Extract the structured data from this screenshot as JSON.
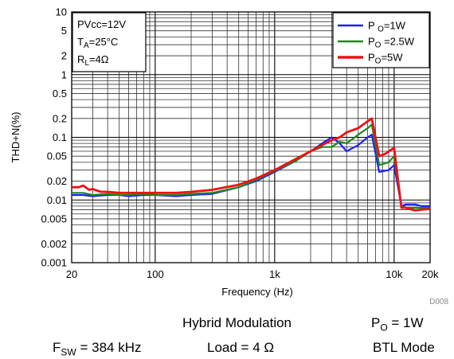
{
  "chart_data": {
    "type": "line",
    "xlabel": "Frequency (Hz)",
    "ylabel": "THD+N(%)",
    "x_scale": "log",
    "y_scale": "log",
    "xlim": [
      20,
      20000
    ],
    "ylim": [
      0.001,
      10
    ],
    "grid": true,
    "x_ticks": [
      {
        "value": 20,
        "label": "20"
      },
      {
        "value": 100,
        "label": "100"
      },
      {
        "value": 1000,
        "label": "1k"
      },
      {
        "value": 10000,
        "label": "10k"
      },
      {
        "value": 20000,
        "label": "20k"
      }
    ],
    "y_ticks": [
      {
        "value": 10,
        "label": "10"
      },
      {
        "value": 5,
        "label": "5"
      },
      {
        "value": 2,
        "label": "2"
      },
      {
        "value": 1,
        "label": "1"
      },
      {
        "value": 0.5,
        "label": "0.5"
      },
      {
        "value": 0.2,
        "label": "0.2"
      },
      {
        "value": 0.1,
        "label": "0.1"
      },
      {
        "value": 0.05,
        "label": "0.05"
      },
      {
        "value": 0.02,
        "label": "0.02"
      },
      {
        "value": 0.01,
        "label": "0.01"
      },
      {
        "value": 0.005,
        "label": "0.005"
      },
      {
        "value": 0.002,
        "label": "0.002"
      },
      {
        "value": 0.001,
        "label": "0.001"
      }
    ],
    "conditions": [
      {
        "main": "PVcc=12V",
        "sub": "",
        "tail": ""
      },
      {
        "main": "T",
        "sub": "A",
        "tail": "=25°C"
      },
      {
        "main": "R",
        "sub": "L",
        "tail": "=4Ω"
      }
    ],
    "legend_position": "top-right",
    "series": [
      {
        "name": "P O=1W",
        "name_main": "P ",
        "name_sub": "O",
        "name_tail": "=1W",
        "color": "#1f1fff",
        "x": [
          20,
          25,
          30,
          40,
          50,
          60,
          80,
          100,
          150,
          200,
          300,
          500,
          700,
          1000,
          1500,
          2000,
          2500,
          3000,
          3500,
          4000,
          5000,
          6000,
          6500,
          7500,
          9000,
          10000,
          11500,
          12500,
          15000,
          17000,
          20000
        ],
        "y": [
          0.012,
          0.012,
          0.0115,
          0.012,
          0.012,
          0.0115,
          0.012,
          0.012,
          0.0115,
          0.012,
          0.0125,
          0.016,
          0.02,
          0.028,
          0.042,
          0.06,
          0.08,
          0.1,
          0.08,
          0.06,
          0.075,
          0.1,
          0.11,
          0.028,
          0.03,
          0.036,
          0.008,
          0.0085,
          0.0085,
          0.008,
          0.008
        ]
      },
      {
        "name": "PO =2.5W",
        "name_main": "P",
        "name_sub": "O",
        "name_tail": " =2.5W",
        "color": "#1a8a1a",
        "x": [
          20,
          25,
          30,
          40,
          50,
          60,
          80,
          100,
          150,
          200,
          300,
          500,
          700,
          1000,
          1500,
          2000,
          2500,
          3000,
          3500,
          4000,
          5000,
          6000,
          6500,
          7500,
          9000,
          10000,
          11500,
          12500,
          15000,
          17000,
          20000
        ],
        "y": [
          0.013,
          0.013,
          0.012,
          0.0125,
          0.012,
          0.012,
          0.0125,
          0.012,
          0.012,
          0.0125,
          0.013,
          0.016,
          0.021,
          0.029,
          0.042,
          0.06,
          0.07,
          0.07,
          0.085,
          0.08,
          0.11,
          0.14,
          0.16,
          0.036,
          0.04,
          0.05,
          0.008,
          0.0075,
          0.0075,
          0.0075,
          0.0075
        ]
      },
      {
        "name": "PO=5W",
        "name_main": "P",
        "name_sub": "O",
        "name_tail": "=5W",
        "color": "#ee1111",
        "x": [
          20,
          23,
          25,
          28,
          30,
          35,
          40,
          50,
          60,
          80,
          100,
          150,
          200,
          300,
          500,
          700,
          1000,
          1500,
          2000,
          2500,
          3000,
          3500,
          4000,
          5000,
          6000,
          6500,
          7500,
          8500,
          10000,
          11500,
          12500,
          15000,
          17000,
          20000
        ],
        "y": [
          0.016,
          0.016,
          0.017,
          0.0145,
          0.015,
          0.0135,
          0.0135,
          0.013,
          0.013,
          0.013,
          0.013,
          0.013,
          0.0135,
          0.0145,
          0.0175,
          0.022,
          0.03,
          0.045,
          0.06,
          0.075,
          0.09,
          0.1,
          0.12,
          0.14,
          0.18,
          0.2,
          0.05,
          0.055,
          0.068,
          0.0075,
          0.0075,
          0.0068,
          0.007,
          0.0072
        ]
      }
    ],
    "figure_code": "D008"
  },
  "captions": {
    "row1_modulation": "Hybrid Modulation",
    "row1_power_main": "P",
    "row1_power_sub": "O",
    "row1_power_tail": " = 1W",
    "row2_fsw_main": "F",
    "row2_fsw_sub": "SW",
    "row2_fsw_tail": " = 384 kHz",
    "row2_load": "Load = 4 Ω",
    "row2_mode": "BTL Mode"
  }
}
